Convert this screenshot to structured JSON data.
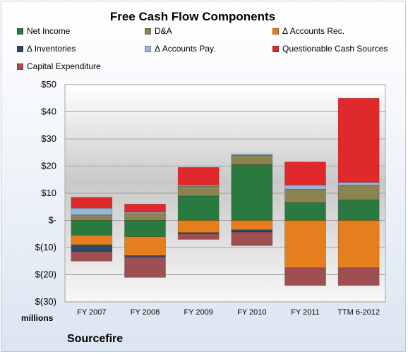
{
  "chart_data": {
    "type": "bar",
    "title": "Free Cash Flow Components",
    "categories": [
      "FY 2007",
      "FY 2008",
      "FY 2009",
      "FY 2010",
      "FY 2011",
      "TTM 6-2012"
    ],
    "ylim": [
      -30,
      50
    ],
    "yticks": [
      50,
      40,
      30,
      20,
      10,
      0,
      -10,
      -20,
      -30
    ],
    "ytick_labels": [
      "$50",
      "$40",
      "$30",
      "$20",
      "$10",
      "$-",
      "$(10)",
      "$(20)",
      "$(30)"
    ],
    "units_label": "millions",
    "grid": true,
    "legend_position": "top",
    "stacked": true,
    "series": [
      {
        "name": "Net Income",
        "color": "#2a7a3f",
        "values": [
          -5.5,
          -6,
          9,
          20.5,
          6.5,
          7.5
        ]
      },
      {
        "name": "D&A",
        "color": "#8c8450",
        "values": [
          2,
          2.5,
          3.5,
          3.5,
          5,
          5.5
        ]
      },
      {
        "name": "Δ Accounts Rec.",
        "color": "#e57f1e",
        "values": [
          -3.5,
          -7,
          -4.5,
          -3.5,
          -17.5,
          -17.5
        ]
      },
      {
        "name": "Δ Inventories",
        "color": "#2c4a66",
        "values": [
          -2.5,
          -0.5,
          -0.5,
          -0.8,
          0,
          0
        ]
      },
      {
        "name": "Δ Accounts Pay.",
        "color": "#9ab4d8",
        "values": [
          2.5,
          0.5,
          0.5,
          0.5,
          1.5,
          1
        ]
      },
      {
        "name": "Questionable Cash Sources",
        "color": "#e0292b",
        "values": [
          4,
          3,
          6.5,
          0,
          8.5,
          31
        ]
      },
      {
        "name": "Capital Expenditure",
        "color": "#9e4f52",
        "values": [
          -3.5,
          -7.5,
          -2,
          -5,
          -6.5,
          -6.5
        ]
      }
    ]
  },
  "footer": {
    "company": "Sourcefire"
  }
}
